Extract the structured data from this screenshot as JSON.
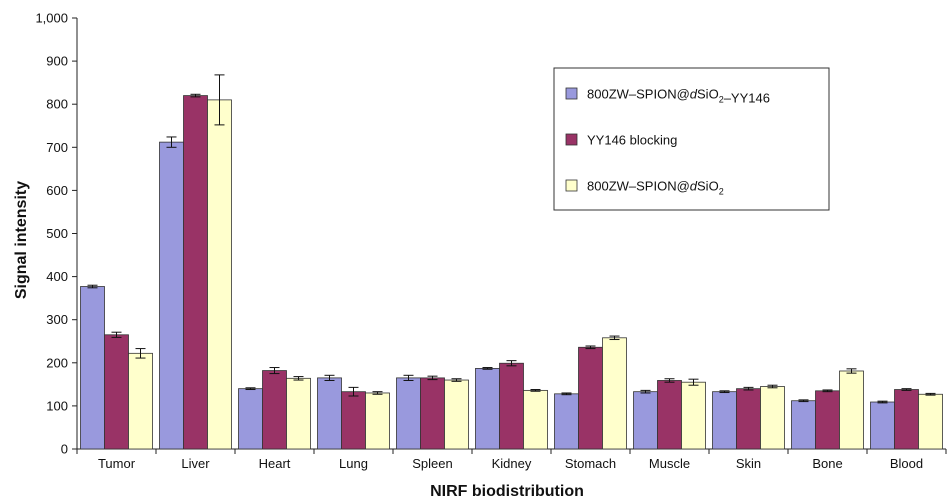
{
  "chart_data": {
    "type": "bar",
    "xlabel": "NIRF biodistribution",
    "ylabel": "Signal intensity",
    "ylim": [
      0,
      1000
    ],
    "yticks": [
      "0",
      "100",
      "200",
      "300",
      "400",
      "500",
      "600",
      "700",
      "800",
      "900",
      "1,000"
    ],
    "categories": [
      "Tumor",
      "Liver",
      "Heart",
      "Lung",
      "Spleen",
      "Kidney",
      "Stomach",
      "Muscle",
      "Skin",
      "Bone",
      "Blood"
    ],
    "series": [
      {
        "name": "800ZW–SPION@dSiO2–YY146",
        "color": "#9999dd",
        "values": [
          377,
          712,
          140,
          165,
          165,
          187,
          128,
          133,
          133,
          112,
          109
        ],
        "errors": [
          3,
          12,
          2,
          6,
          6,
          2,
          2,
          3,
          2,
          2,
          2
        ]
      },
      {
        "name": "YY146 blocking",
        "color": "#993366",
        "values": [
          265,
          820,
          182,
          133,
          165,
          199,
          236,
          159,
          140,
          135,
          138
        ],
        "errors": [
          6,
          3,
          7,
          10,
          4,
          6,
          3,
          4,
          3,
          2,
          2
        ]
      },
      {
        "name": "800ZW–SPION@dSiO2",
        "color": "#ffffcc",
        "values": [
          222,
          810,
          164,
          130,
          160,
          136,
          258,
          155,
          145,
          181,
          127
        ],
        "errors": [
          11,
          58,
          4,
          3,
          3,
          2,
          4,
          7,
          3,
          5,
          2
        ]
      }
    ],
    "legend": {
      "placement": "top-right",
      "entries": [
        {
          "parts": [
            {
              "t": "800ZW–SPION@"
            },
            {
              "t": "d",
              "style": "it"
            },
            {
              "t": "SiO"
            },
            {
              "t": "2",
              "style": "sub"
            },
            {
              "t": "–YY146"
            }
          ]
        },
        {
          "parts": [
            {
              "t": "YY146 blocking"
            }
          ]
        },
        {
          "parts": [
            {
              "t": "800ZW–SPION@"
            },
            {
              "t": "d",
              "style": "it"
            },
            {
              "t": "SiO"
            },
            {
              "t": "2",
              "style": "sub"
            }
          ]
        }
      ]
    }
  }
}
